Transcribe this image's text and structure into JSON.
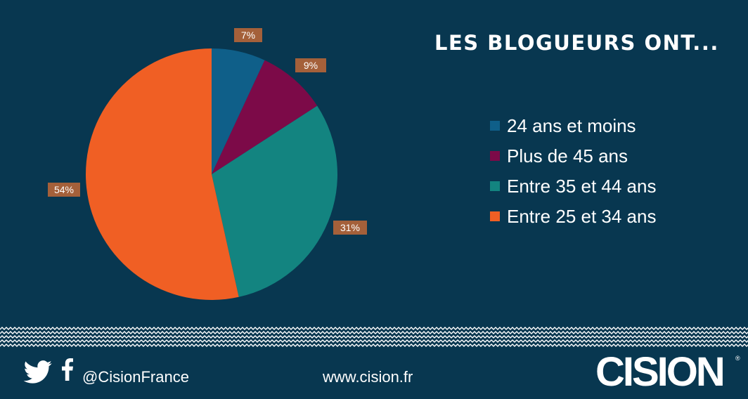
{
  "title": "LES BLOGUEURS ONT...",
  "chart_data": {
    "type": "pie",
    "categories": [
      "24 ans et moins",
      "Plus de 45 ans",
      "Entre 35 et 44 ans",
      "Entre 25 et 34 ans"
    ],
    "values": [
      7,
      9,
      31,
      54
    ],
    "labels": [
      "7%",
      "9%",
      "31%",
      "54%"
    ],
    "colors": [
      "#0f5f89",
      "#7c0a48",
      "#138480",
      "#f05f24"
    ],
    "legend_position": "right",
    "start_angle": "12 o'clock, clockwise"
  },
  "legend": [
    {
      "label": "24 ans et moins",
      "color": "#0f5f89"
    },
    {
      "label": "Plus de 45 ans",
      "color": "#7c0a48"
    },
    {
      "label": "Entre 35 et 44 ans",
      "color": "#138480"
    },
    {
      "label": "Entre 25 et 34 ans",
      "color": "#f05f24"
    }
  ],
  "footer": {
    "handle": "@CisionFrance",
    "website": "www.cision.fr",
    "logo": "CISION",
    "registered": "®",
    "icons": [
      "twitter-icon",
      "facebook-icon"
    ]
  },
  "colors": {
    "background": "#083750",
    "label_box": "#a4603a",
    "text": "#ffffff"
  }
}
